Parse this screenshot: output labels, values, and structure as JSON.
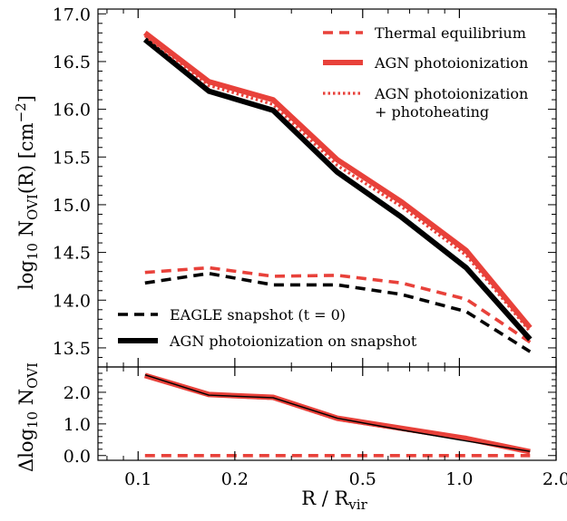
{
  "chart_data": [
    {
      "type": "line",
      "xscale": "log",
      "xlim": [
        0.075,
        2.0
      ],
      "ylim": [
        13.3,
        17.05
      ],
      "ylabel": "log10 NOVI(R) [cm−2]",
      "ylabel_parts": {
        "main": "log",
        "sub1": "10",
        "n": " N",
        "sub2": "OVI",
        "rest": "(R) [cm",
        "sup": "−2",
        "end": "]"
      },
      "yticks": [
        "13.5",
        "14.0",
        "14.5",
        "15.0",
        "15.5",
        "16.0",
        "16.5",
        "17.0"
      ],
      "ytick_values": [
        13.5,
        14.0,
        14.5,
        15.0,
        15.5,
        16.0,
        16.5,
        17.0
      ],
      "x": [
        0.105,
        0.166,
        0.263,
        0.417,
        0.66,
        1.05,
        1.66
      ],
      "series": [
        {
          "name": "Thermal equilibrium",
          "color": "#e8413a",
          "style": "dashed",
          "values": [
            14.29,
            14.34,
            14.25,
            14.26,
            14.18,
            14.01,
            13.56
          ]
        },
        {
          "name": "AGN photoionization",
          "color": "#e8413a",
          "style": "solid",
          "values": [
            16.8,
            16.29,
            16.1,
            15.47,
            15.03,
            14.52,
            13.71
          ]
        },
        {
          "name": "AGN photoionization\n+ photoheating",
          "color": "#e8413a",
          "style": "dotted",
          "values": [
            16.77,
            16.25,
            16.05,
            15.41,
            14.98,
            14.47,
            13.67
          ]
        },
        {
          "name": "EAGLE snapshot (t = 0)",
          "color": "#000000",
          "style": "dashed",
          "values": [
            14.18,
            14.28,
            14.16,
            14.16,
            14.06,
            13.88,
            13.46
          ]
        },
        {
          "name": "AGN photoionization on snapshot",
          "color": "#000000",
          "style": "solid",
          "values": [
            16.73,
            16.19,
            15.99,
            15.34,
            14.87,
            14.34,
            13.59
          ]
        }
      ],
      "legend_top": [
        "Thermal equilibrium",
        "AGN photoionization",
        "AGN photoionization\n+ photoheating"
      ],
      "legend_bottom": [
        "EAGLE snapshot (t = 0)",
        "AGN photoionization on snapshot"
      ]
    },
    {
      "type": "line",
      "xscale": "log",
      "xlim": [
        0.075,
        2.0
      ],
      "ylim": [
        -0.15,
        2.8
      ],
      "xlabel": "R / Rvir",
      "xlabel_parts": {
        "main": "R / R",
        "sub": "vir"
      },
      "ylabel": "Δlog10 NOVI",
      "ylabel_parts": {
        "main": "Δlog",
        "sub1": "10",
        "n": " N",
        "sub2": "OVI"
      },
      "xticks": [
        "0.1",
        "0.2",
        "0.5",
        "1.0",
        "2.0"
      ],
      "xtick_values": [
        0.1,
        0.2,
        0.5,
        1.0,
        2.0
      ],
      "yticks": [
        "0.0",
        "1.0",
        "2.0"
      ],
      "ytick_values": [
        0.0,
        1.0,
        2.0
      ],
      "x": [
        0.105,
        0.166,
        0.263,
        0.417,
        0.66,
        1.05,
        1.66
      ],
      "series": [
        {
          "name": "Thermal equilibrium",
          "color": "#e8413a",
          "style": "dashed",
          "values": [
            0.0,
            0.0,
            0.0,
            0.0,
            0.0,
            0.0,
            0.0
          ]
        },
        {
          "name": "AGN photoionization",
          "color": "#e8413a",
          "style": "solid",
          "values": [
            2.53,
            1.93,
            1.84,
            1.18,
            0.86,
            0.54,
            0.12
          ]
        },
        {
          "name": "AGN photoionization\n+ photoheating",
          "color": "#e8413a",
          "style": "dotted",
          "values": [
            2.5,
            1.9,
            1.8,
            1.14,
            0.82,
            0.5,
            0.1
          ]
        },
        {
          "name": "AGN photoionization on snapshot",
          "color": "#000000",
          "style": "solid",
          "values": [
            2.55,
            1.91,
            1.83,
            1.18,
            0.81,
            0.46,
            0.13
          ]
        }
      ]
    }
  ]
}
